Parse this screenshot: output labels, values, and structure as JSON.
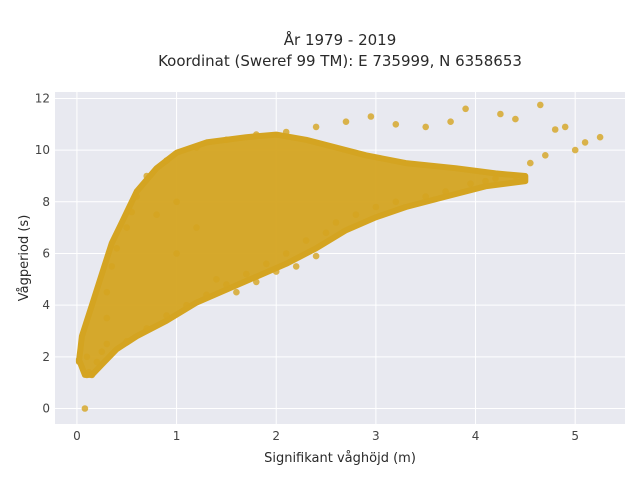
{
  "chart_data": {
    "type": "scatter",
    "title": "År 1979 - 2019",
    "subtitle": "Koordinat (Sweref 99 TM): E 735999, N 6358653",
    "xlabel": "Signifikant våghöjd (m)",
    "ylabel": "Vågperiod (s)",
    "xlim": [
      -0.22,
      5.5
    ],
    "ylim": [
      -0.6,
      12.25
    ],
    "xticks": [
      0,
      1,
      2,
      3,
      4,
      5
    ],
    "yticks": [
      0,
      2,
      4,
      6,
      8,
      10,
      12
    ],
    "grid": true,
    "legend": "none",
    "colors": {
      "marker": "#d4a421",
      "plot_bg": "#e8e9f0",
      "grid": "#ffffff"
    },
    "series": [
      {
        "points": [
          [
            0.08,
            0.0
          ],
          [
            0.1,
            1.3
          ],
          [
            0.12,
            1.4
          ],
          [
            0.15,
            1.3
          ],
          [
            0.1,
            2.0
          ],
          [
            0.2,
            1.8
          ],
          [
            0.25,
            2.2
          ],
          [
            0.3,
            2.5
          ],
          [
            0.3,
            3.5
          ],
          [
            0.3,
            4.5
          ],
          [
            0.35,
            5.5
          ],
          [
            0.4,
            6.2
          ],
          [
            0.5,
            7.0
          ],
          [
            0.55,
            7.6
          ],
          [
            0.6,
            8.2
          ],
          [
            0.7,
            9.0
          ],
          [
            0.9,
            9.6
          ],
          [
            1.2,
            10.1
          ],
          [
            1.5,
            10.4
          ],
          [
            1.8,
            10.6
          ],
          [
            2.1,
            10.7
          ],
          [
            2.4,
            10.9
          ],
          [
            2.7,
            11.1
          ],
          [
            2.95,
            11.3
          ],
          [
            3.2,
            11.0
          ],
          [
            3.5,
            10.9
          ],
          [
            3.75,
            11.1
          ],
          [
            3.9,
            11.6
          ],
          [
            4.25,
            11.4
          ],
          [
            4.4,
            11.2
          ],
          [
            4.65,
            11.75
          ],
          [
            4.8,
            10.8
          ],
          [
            4.9,
            10.9
          ],
          [
            5.0,
            10.0
          ],
          [
            5.1,
            10.3
          ],
          [
            5.25,
            10.5
          ],
          [
            4.7,
            9.8
          ],
          [
            4.55,
            9.5
          ],
          [
            4.4,
            9.0
          ],
          [
            4.2,
            8.9
          ],
          [
            4.1,
            8.8
          ],
          [
            3.95,
            8.7
          ],
          [
            3.7,
            8.4
          ],
          [
            3.5,
            8.2
          ],
          [
            3.2,
            8.0
          ],
          [
            3.0,
            7.8
          ],
          [
            2.8,
            7.5
          ],
          [
            2.6,
            7.2
          ],
          [
            2.5,
            6.8
          ],
          [
            2.3,
            6.5
          ],
          [
            2.1,
            6.0
          ],
          [
            1.9,
            5.6
          ],
          [
            1.7,
            5.2
          ],
          [
            1.5,
            4.8
          ],
          [
            1.3,
            4.4
          ],
          [
            1.1,
            4.0
          ],
          [
            0.9,
            3.6
          ],
          [
            0.7,
            3.1
          ],
          [
            0.5,
            2.6
          ],
          [
            2.2,
            5.5
          ],
          [
            2.0,
            5.3
          ],
          [
            1.8,
            4.9
          ],
          [
            1.6,
            4.5
          ],
          [
            2.4,
            5.9
          ],
          [
            1.4,
            5.0
          ],
          [
            1.0,
            6.0
          ],
          [
            1.2,
            7.0
          ],
          [
            1.0,
            8.0
          ],
          [
            0.8,
            7.5
          ]
        ]
      }
    ]
  }
}
